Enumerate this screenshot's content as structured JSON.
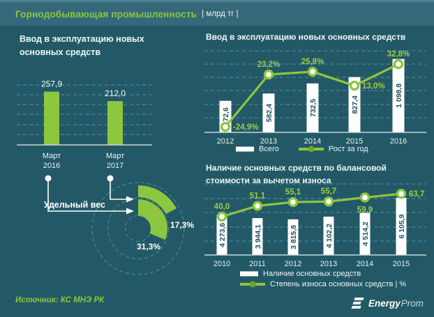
{
  "header": {
    "title": "Горнодобывающая промышленность",
    "unit": "| млрд тг |"
  },
  "footer": {
    "source": "Источник: КС МНЭ РК",
    "logo": {
      "bold": "Energy",
      "light": "Prom"
    }
  },
  "colors": {
    "background": "#235966",
    "header_band": "#35697a",
    "accent_green": "#8dc63f",
    "bar_white": "#ffffff",
    "grid_dash": "#4d91a8",
    "axis": "#c9d6da",
    "bar_value_text": "#1c4f5e"
  },
  "chart_data": [
    {
      "type": "bar",
      "title": "Ввод в эксплуатацию  новых основных  средств",
      "categories": [
        "Март 2016",
        "Март 2017"
      ],
      "values": [
        257.9,
        212.0
      ],
      "labels": [
        "257,9",
        "212,0"
      ],
      "ylim": [
        0,
        290
      ],
      "grid": "dashed"
    },
    {
      "type": "donut-arcs",
      "title": "Удельный вес",
      "segments": [
        {
          "category": "Март 2017",
          "value": 17.3,
          "label": "17,3%",
          "ring": "outer"
        },
        {
          "category": "Март 2016",
          "value": 31.3,
          "label": "31,3%",
          "ring": "inner"
        }
      ]
    },
    {
      "type": "bar+line",
      "title": "Ввод в эксплуатацию  новых  основных  средств",
      "categories": [
        "2012",
        "2013",
        "2014",
        "2015",
        "2016"
      ],
      "series": [
        {
          "name": "Всего",
          "type": "bar",
          "values": [
            472.6,
            582.4,
            732.5,
            827.4,
            1098.8
          ],
          "labels": [
            "472,6",
            "582,4",
            "732,5",
            "827,4",
            "1 098,8"
          ]
        },
        {
          "name": "Рост за год",
          "type": "line",
          "values": [
            -24.9,
            23.2,
            25.8,
            13.0,
            32.8
          ],
          "labels": [
            "-24,9%",
            "23,2%",
            "25,8%",
            "13,0%",
            "32,8%"
          ],
          "label_pos": [
            "right",
            "above",
            "above",
            "right",
            "above"
          ]
        }
      ],
      "bar_ylim": [
        0,
        1220
      ],
      "line_ylim": [
        -30,
        45
      ],
      "grid": "dashed",
      "legend_position": "bottom"
    },
    {
      "type": "bar+line",
      "title": "Наличие  основных  средств  по балансовой  стоимости  за вычетом  износа",
      "categories": [
        "2010",
        "2011",
        "2012",
        "2013",
        "2014",
        "2015"
      ],
      "series": [
        {
          "name": "Наличие основных средств",
          "type": "bar",
          "values": [
            4273.6,
            3944.1,
            3815.8,
            4102.2,
            4514.2,
            6105.9
          ],
          "labels": [
            "4 273,6",
            "3 944,1",
            "3 815,8",
            "4 102,2",
            "4 514,2",
            "6 105,9"
          ]
        },
        {
          "name": "Степень износа основных средств | %",
          "type": "line",
          "values": [
            40.0,
            51.1,
            55.1,
            55.7,
            59.9,
            63.7
          ],
          "labels": [
            "40,0",
            "51,1",
            "55,1",
            "55,7",
            "59,9",
            "63,7"
          ],
          "label_pos": [
            "above",
            "above",
            "above",
            "above",
            "below",
            "right"
          ]
        }
      ],
      "bar_ylim": [
        0,
        7600
      ],
      "line_ylim": [
        0,
        74
      ],
      "grid": "dashed",
      "legend_position": "bottom"
    }
  ]
}
